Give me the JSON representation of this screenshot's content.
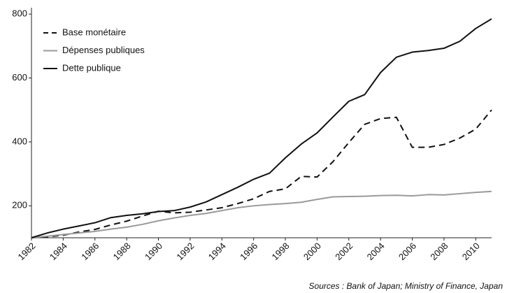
{
  "chart_data": {
    "type": "line",
    "source": "Sources : Bank of Japan; Ministry of Finance, Japan",
    "x": [
      1982,
      1983,
      1984,
      1985,
      1986,
      1987,
      1988,
      1989,
      1990,
      1991,
      1992,
      1993,
      1994,
      1995,
      1996,
      1997,
      1998,
      1999,
      2000,
      2001,
      2002,
      2003,
      2004,
      2005,
      2006,
      2007,
      2008,
      2009,
      2010,
      2011
    ],
    "series": [
      {
        "name": "Base monétaire",
        "color": "#111111",
        "dash": true,
        "values": [
          100,
          103,
          108,
          118,
          126,
          140,
          152,
          168,
          183,
          178,
          180,
          187,
          194,
          207,
          222,
          245,
          253,
          292,
          290,
          338,
          398,
          455,
          473,
          477,
          383,
          383,
          392,
          412,
          440,
          500
        ]
      },
      {
        "name": "Dépenses publiques",
        "color": "#9a9a9a",
        "dash": false,
        "values": [
          100,
          105,
          110,
          115,
          120,
          127,
          133,
          142,
          153,
          162,
          170,
          176,
          185,
          194,
          200,
          204,
          207,
          211,
          220,
          228,
          229,
          230,
          232,
          233,
          231,
          235,
          234,
          238,
          242,
          245
        ]
      },
      {
        "name": "Dette publique",
        "color": "#111111",
        "dash": false,
        "values": [
          100,
          115,
          127,
          137,
          147,
          163,
          170,
          175,
          182,
          185,
          196,
          212,
          235,
          258,
          283,
          302,
          350,
          393,
          428,
          478,
          527,
          548,
          617,
          665,
          681,
          686,
          693,
          715,
          755,
          785
        ]
      }
    ],
    "xlim": [
      1982,
      2011
    ],
    "xticks": [
      1982,
      1984,
      1986,
      1988,
      1990,
      1992,
      1994,
      1996,
      1998,
      2000,
      2002,
      2004,
      2006,
      2008,
      2010
    ],
    "ylim": [
      100,
      820
    ],
    "yticks": [
      200,
      400,
      600,
      800
    ],
    "grid": false,
    "legend": "upper left"
  }
}
